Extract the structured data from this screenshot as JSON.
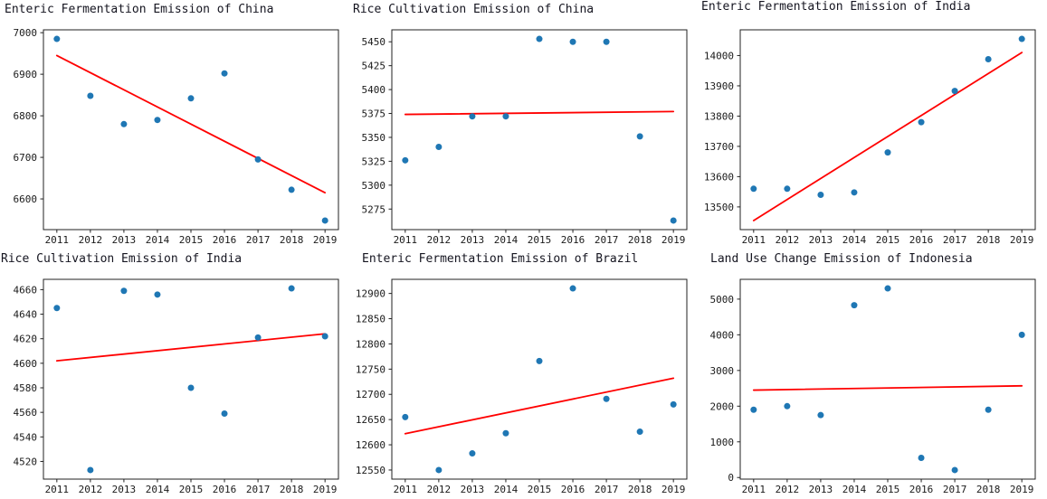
{
  "figure_title": "",
  "colors": {
    "point": "#1f77b4",
    "trend": "#ff0000",
    "axis": "#222222",
    "tick_text": "#1a1a1a",
    "title_text": "#151520",
    "background": "#ffffff"
  },
  "chart_data": [
    {
      "type": "scatter",
      "title": "Enteric Fermentation Emission of China",
      "xlabel": "",
      "ylabel": "",
      "x": [
        2011,
        2012,
        2013,
        2014,
        2015,
        2016,
        2017,
        2018,
        2019
      ],
      "y": [
        6985,
        6848,
        6780,
        6790,
        6842,
        6902,
        6695,
        6622,
        6548
      ],
      "yticks": [
        6600,
        6700,
        6800,
        6900,
        7000
      ],
      "xticks": [
        2011,
        2012,
        2013,
        2014,
        2015,
        2016,
        2017,
        2018,
        2019
      ],
      "trendline": {
        "x": [
          2011,
          2019
        ],
        "y": [
          6945,
          6615
        ]
      },
      "legend": null,
      "grid": false
    },
    {
      "type": "scatter",
      "title": "Rice Cultivation Emission of China",
      "xlabel": "",
      "ylabel": "",
      "x": [
        2011,
        2012,
        2013,
        2014,
        2015,
        2016,
        2017,
        2018,
        2019
      ],
      "y": [
        5326,
        5340,
        5372,
        5372,
        5453,
        5450,
        5450,
        5351,
        5263
      ],
      "yticks": [
        5275,
        5300,
        5325,
        5350,
        5375,
        5400,
        5425,
        5450
      ],
      "xticks": [
        2011,
        2012,
        2013,
        2014,
        2015,
        2016,
        2017,
        2018,
        2019
      ],
      "trendline": {
        "x": [
          2011,
          2019
        ],
        "y": [
          5374,
          5377
        ]
      },
      "legend": null,
      "grid": false
    },
    {
      "type": "scatter",
      "title": "Enteric Fermentation Emission of India",
      "xlabel": "",
      "ylabel": "",
      "x": [
        2011,
        2012,
        2013,
        2014,
        2015,
        2016,
        2017,
        2018,
        2019
      ],
      "y": [
        13560,
        13560,
        13540,
        13548,
        13680,
        13780,
        13883,
        13988,
        14055
      ],
      "yticks": [
        13500,
        13600,
        13700,
        13800,
        13900,
        14000
      ],
      "xticks": [
        2011,
        2012,
        2013,
        2014,
        2015,
        2016,
        2017,
        2018,
        2019
      ],
      "trendline": {
        "x": [
          2011,
          2019
        ],
        "y": [
          13455,
          14010
        ]
      },
      "legend": null,
      "grid": false
    },
    {
      "type": "scatter",
      "title": "Rice Cultivation Emission of India",
      "xlabel": "",
      "ylabel": "",
      "x": [
        2011,
        2012,
        2013,
        2014,
        2015,
        2016,
        2017,
        2018,
        2019
      ],
      "y": [
        4645,
        4513,
        4659,
        4656,
        4580,
        4559,
        4621,
        4661,
        4622
      ],
      "yticks": [
        4520,
        4540,
        4560,
        4580,
        4600,
        4620,
        4640,
        4660
      ],
      "xticks": [
        2011,
        2012,
        2013,
        2014,
        2015,
        2016,
        2017,
        2018,
        2019
      ],
      "trendline": {
        "x": [
          2011,
          2019
        ],
        "y": [
          4602,
          4624
        ]
      },
      "legend": null,
      "grid": false
    },
    {
      "type": "scatter",
      "title": "Enteric Fermentation Emission of Brazil",
      "xlabel": "",
      "ylabel": "",
      "x": [
        2011,
        2012,
        2013,
        2014,
        2015,
        2016,
        2017,
        2018,
        2019
      ],
      "y": [
        12655,
        12550,
        12583,
        12623,
        12766,
        12910,
        12691,
        12626,
        12680
      ],
      "yticks": [
        12550,
        12600,
        12650,
        12700,
        12750,
        12800,
        12850,
        12900
      ],
      "xticks": [
        2011,
        2012,
        2013,
        2014,
        2015,
        2016,
        2017,
        2018,
        2019
      ],
      "trendline": {
        "x": [
          2011,
          2019
        ],
        "y": [
          12622,
          12732
        ]
      },
      "legend": null,
      "grid": false
    },
    {
      "type": "scatter",
      "title": "Land Use Change Emission of Indonesia",
      "xlabel": "",
      "ylabel": "",
      "x": [
        2011,
        2012,
        2013,
        2014,
        2015,
        2016,
        2017,
        2018,
        2019
      ],
      "y": [
        1900,
        2000,
        1750,
        4830,
        5300,
        550,
        210,
        1900,
        4000
      ],
      "yticks": [
        0,
        1000,
        2000,
        3000,
        4000,
        5000
      ],
      "xticks": [
        2011,
        2012,
        2013,
        2014,
        2015,
        2016,
        2017,
        2018,
        2019
      ],
      "trendline": {
        "x": [
          2011,
          2019
        ],
        "y": [
          2450,
          2570
        ]
      },
      "legend": null,
      "grid": false
    }
  ]
}
